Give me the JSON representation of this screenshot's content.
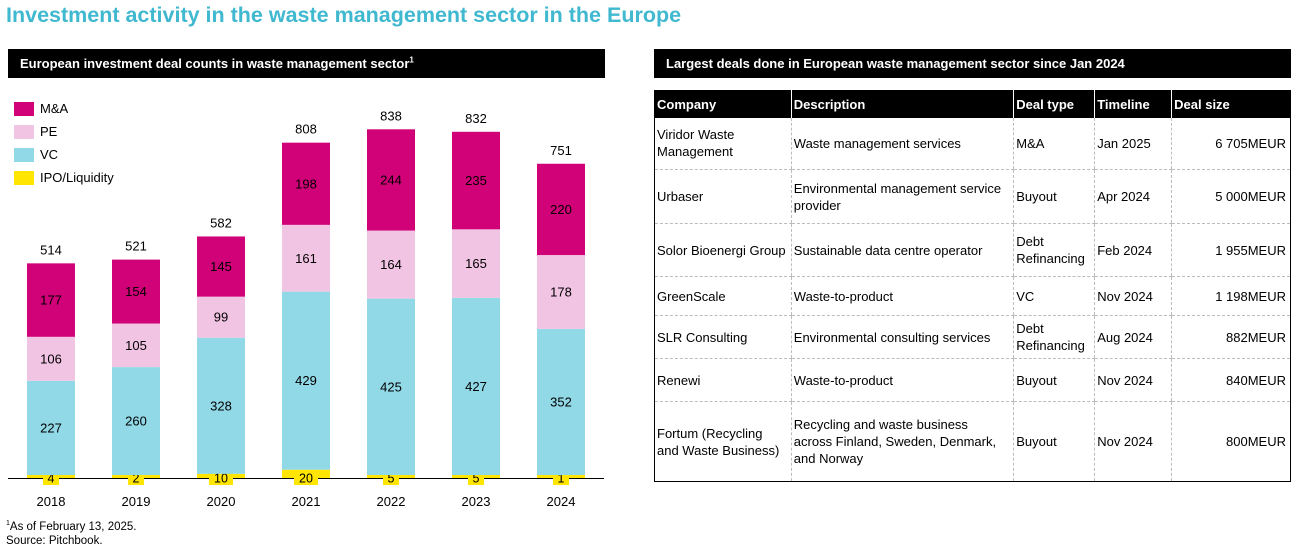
{
  "page_title": "Investment activity in the waste management sector in the Europe",
  "left_panel": {
    "header": "European investment deal counts in waste management sector",
    "header_sup": "1"
  },
  "right_panel": {
    "header": "Largest deals done in European waste management sector since Jan 2024"
  },
  "chart_data": {
    "type": "bar",
    "stacked": true,
    "title": "European investment deal counts in waste management sector",
    "categories": [
      "2018",
      "2019",
      "2020",
      "2021",
      "2022",
      "2023",
      "2024"
    ],
    "series": [
      {
        "name": "IPO/Liquidity",
        "color": "#ffe500",
        "values": [
          4,
          2,
          10,
          20,
          5,
          5,
          1
        ]
      },
      {
        "name": "VC",
        "color": "#91d9e7",
        "values": [
          227,
          260,
          328,
          429,
          425,
          427,
          352
        ]
      },
      {
        "name": "PE",
        "color": "#f2c4e3",
        "values": [
          106,
          105,
          99,
          161,
          164,
          165,
          178
        ]
      },
      {
        "name": "M&A",
        "color": "#d10177",
        "values": [
          177,
          154,
          145,
          198,
          244,
          235,
          220
        ]
      }
    ],
    "totals": [
      514,
      521,
      582,
      808,
      838,
      832,
      751
    ],
    "legend_order": [
      "M&A",
      "PE",
      "VC",
      "IPO/Liquidity"
    ],
    "legend_position": "top-left",
    "xlabel": "",
    "ylabel": "",
    "ylim": [
      0,
      900
    ]
  },
  "footnote": {
    "sup": "1",
    "note": "As of February 13, 2025.",
    "source": "Source: Pitchbook."
  },
  "table": {
    "columns": [
      "Company",
      "Description",
      "Deal type",
      "Timeline",
      "Deal size"
    ],
    "rows": [
      {
        "company": "Viridor Waste Management",
        "description": "Waste management services",
        "deal_type": "M&A",
        "timeline": "Jan 2025",
        "deal_size": "6 705MEUR"
      },
      {
        "company": "Urbaser",
        "description": "Environmental management service provider",
        "deal_type": "Buyout",
        "timeline": "Apr 2024",
        "deal_size": "5 000MEUR"
      },
      {
        "company": "Solor Bioenergi Group",
        "description": "Sustainable data centre operator",
        "deal_type": "Debt Refinancing",
        "timeline": "Feb 2024",
        "deal_size": "1 955MEUR"
      },
      {
        "company": "GreenScale",
        "description": "Waste-to-product",
        "deal_type": "VC",
        "timeline": "Nov 2024",
        "deal_size": "1 198MEUR"
      },
      {
        "company": "SLR Consulting",
        "description": "Environmental consulting services",
        "deal_type": "Debt Refinancing",
        "timeline": "Aug 2024",
        "deal_size": "882MEUR"
      },
      {
        "company": "Renewi",
        "description": "Waste-to-product",
        "deal_type": "Buyout",
        "timeline": "Nov 2024",
        "deal_size": "840MEUR"
      },
      {
        "company": "Fortum (Recycling and Waste Business)",
        "description": "Recycling and waste business across Finland, Sweden, Denmark, and Norway",
        "deal_type": "Buyout",
        "timeline": "Nov 2024",
        "deal_size": "800MEUR"
      }
    ]
  }
}
